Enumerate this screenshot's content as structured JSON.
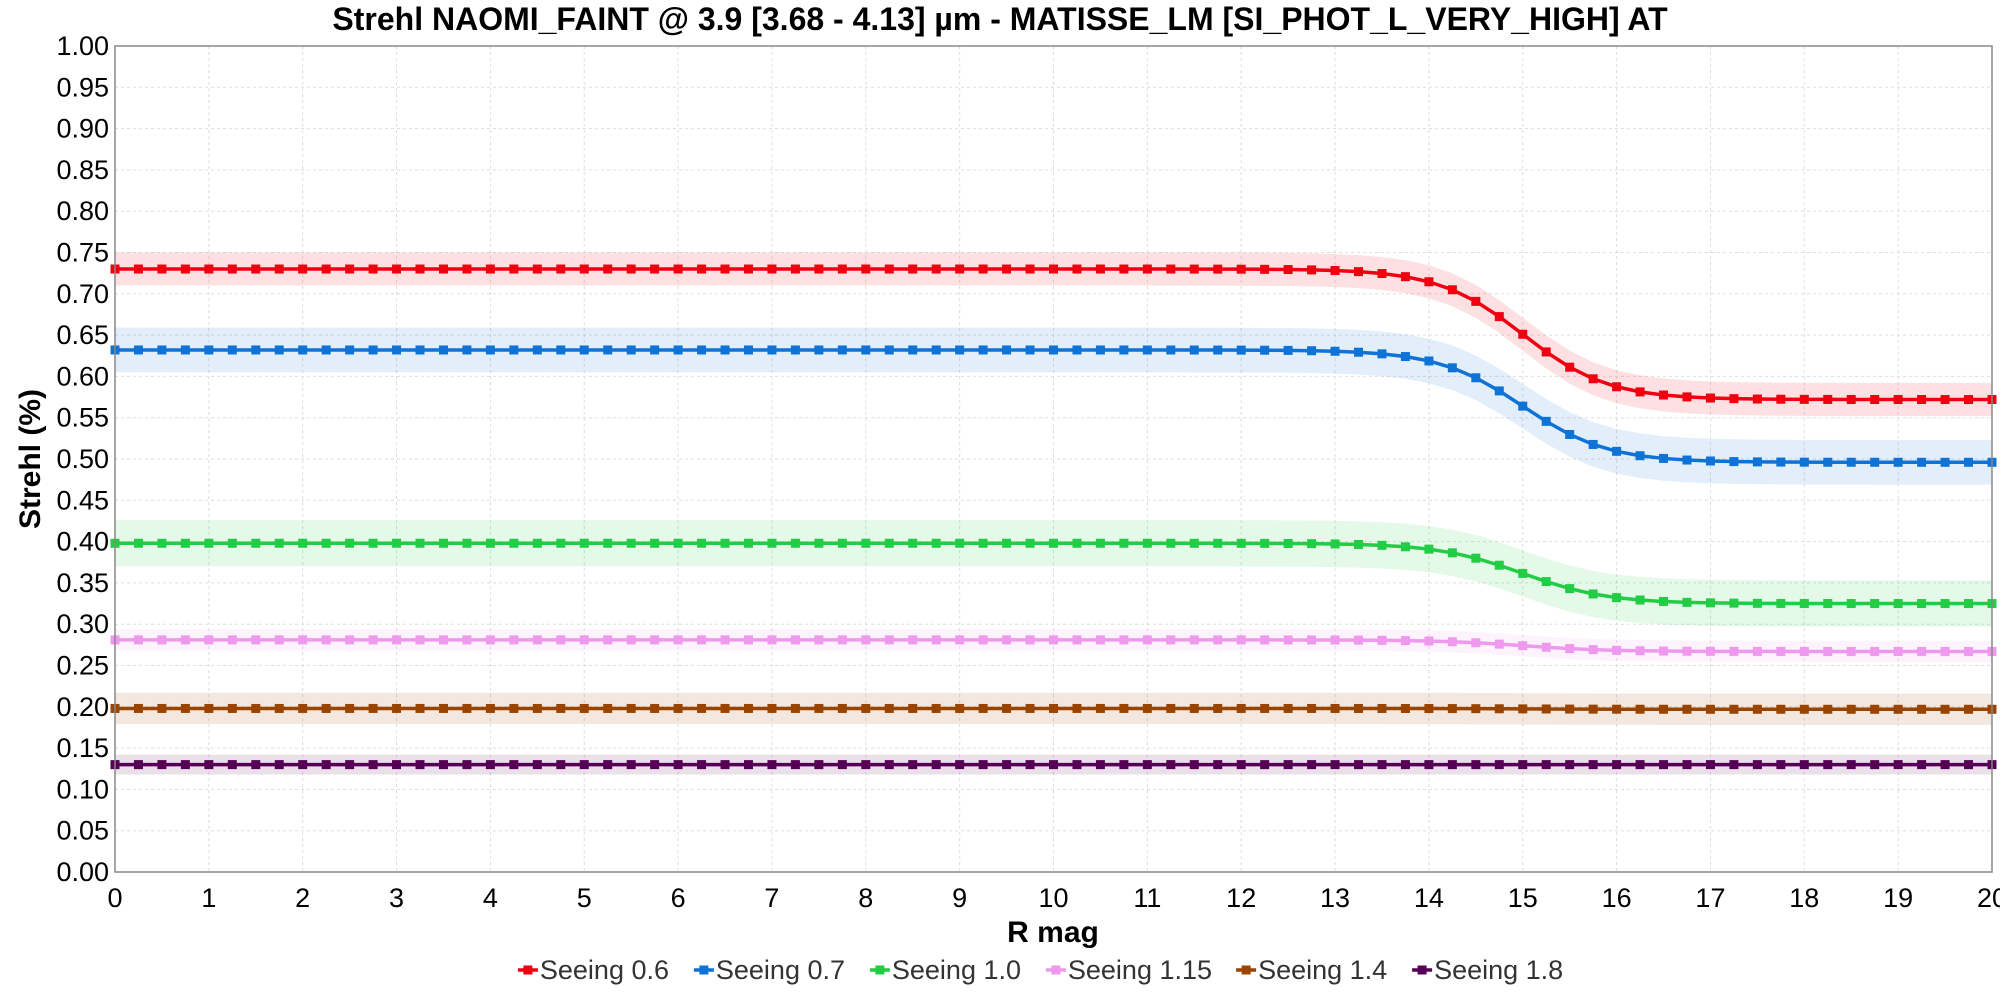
{
  "chart_data": {
    "type": "line",
    "title": "Strehl NAOMI_FAINT @ 3.9 [3.68 - 4.13] µm - MATISSE_LM [SI_PHOT_L_VERY_HIGH] AT",
    "xlabel": "R mag",
    "ylabel": "Strehl (%)",
    "xlim": [
      0,
      20
    ],
    "ylim": [
      0,
      1
    ],
    "x_ticks": [
      "0",
      "1",
      "2",
      "3",
      "4",
      "5",
      "6",
      "7",
      "8",
      "9",
      "10",
      "11",
      "12",
      "13",
      "14",
      "15",
      "16",
      "17",
      "18",
      "19",
      "20"
    ],
    "y_ticks": [
      "0.00",
      "0.05",
      "0.10",
      "0.15",
      "0.20",
      "0.25",
      "0.30",
      "0.35",
      "0.40",
      "0.45",
      "0.50",
      "0.55",
      "0.60",
      "0.65",
      "0.70",
      "0.75",
      "0.80",
      "0.85",
      "0.90",
      "0.95",
      "1.00"
    ],
    "grid": true,
    "legend_position": "bottom",
    "x_step": 0.25,
    "transition_center": 15.0,
    "series": [
      {
        "name": "Seeing 0.6",
        "color": "#ee0011",
        "high": 0.73,
        "low": 0.572,
        "band": 0.02
      },
      {
        "name": "Seeing 0.7",
        "color": "#0f72d6",
        "high": 0.632,
        "low": 0.496,
        "band": 0.027
      },
      {
        "name": "Seeing 1.0",
        "color": "#22cc44",
        "high": 0.398,
        "low": 0.325,
        "band": 0.028
      },
      {
        "name": "Seeing 1.15",
        "color": "#ee99ee",
        "high": 0.281,
        "low": 0.267,
        "band": 0.013
      },
      {
        "name": "Seeing 1.4",
        "color": "#994400",
        "high": 0.198,
        "low": 0.197,
        "band": 0.019
      },
      {
        "name": "Seeing 1.8",
        "color": "#550055",
        "high": 0.13,
        "low": 0.13,
        "band": 0.012
      }
    ]
  }
}
